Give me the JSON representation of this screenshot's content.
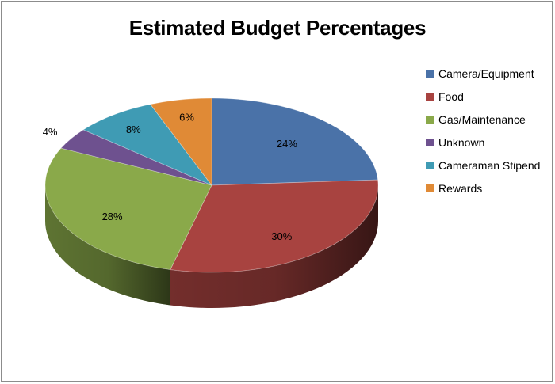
{
  "chart_data": {
    "type": "pie",
    "title": "Estimated Budget Percentages",
    "categories": [
      "Camera/Equipment",
      "Food",
      "Gas/Maintenance",
      "Unknown",
      "Cameraman Stipend",
      "Rewards"
    ],
    "values": [
      24,
      30,
      28,
      4,
      8,
      6
    ],
    "labels": [
      "24%",
      "30%",
      "28%",
      "4%",
      "8%",
      "6%"
    ],
    "colors": [
      "#4a72a8",
      "#a84340",
      "#8aa94a",
      "#6e518f",
      "#3f9bb4",
      "#e08a36"
    ],
    "legend_position": "right",
    "style": "3d"
  }
}
